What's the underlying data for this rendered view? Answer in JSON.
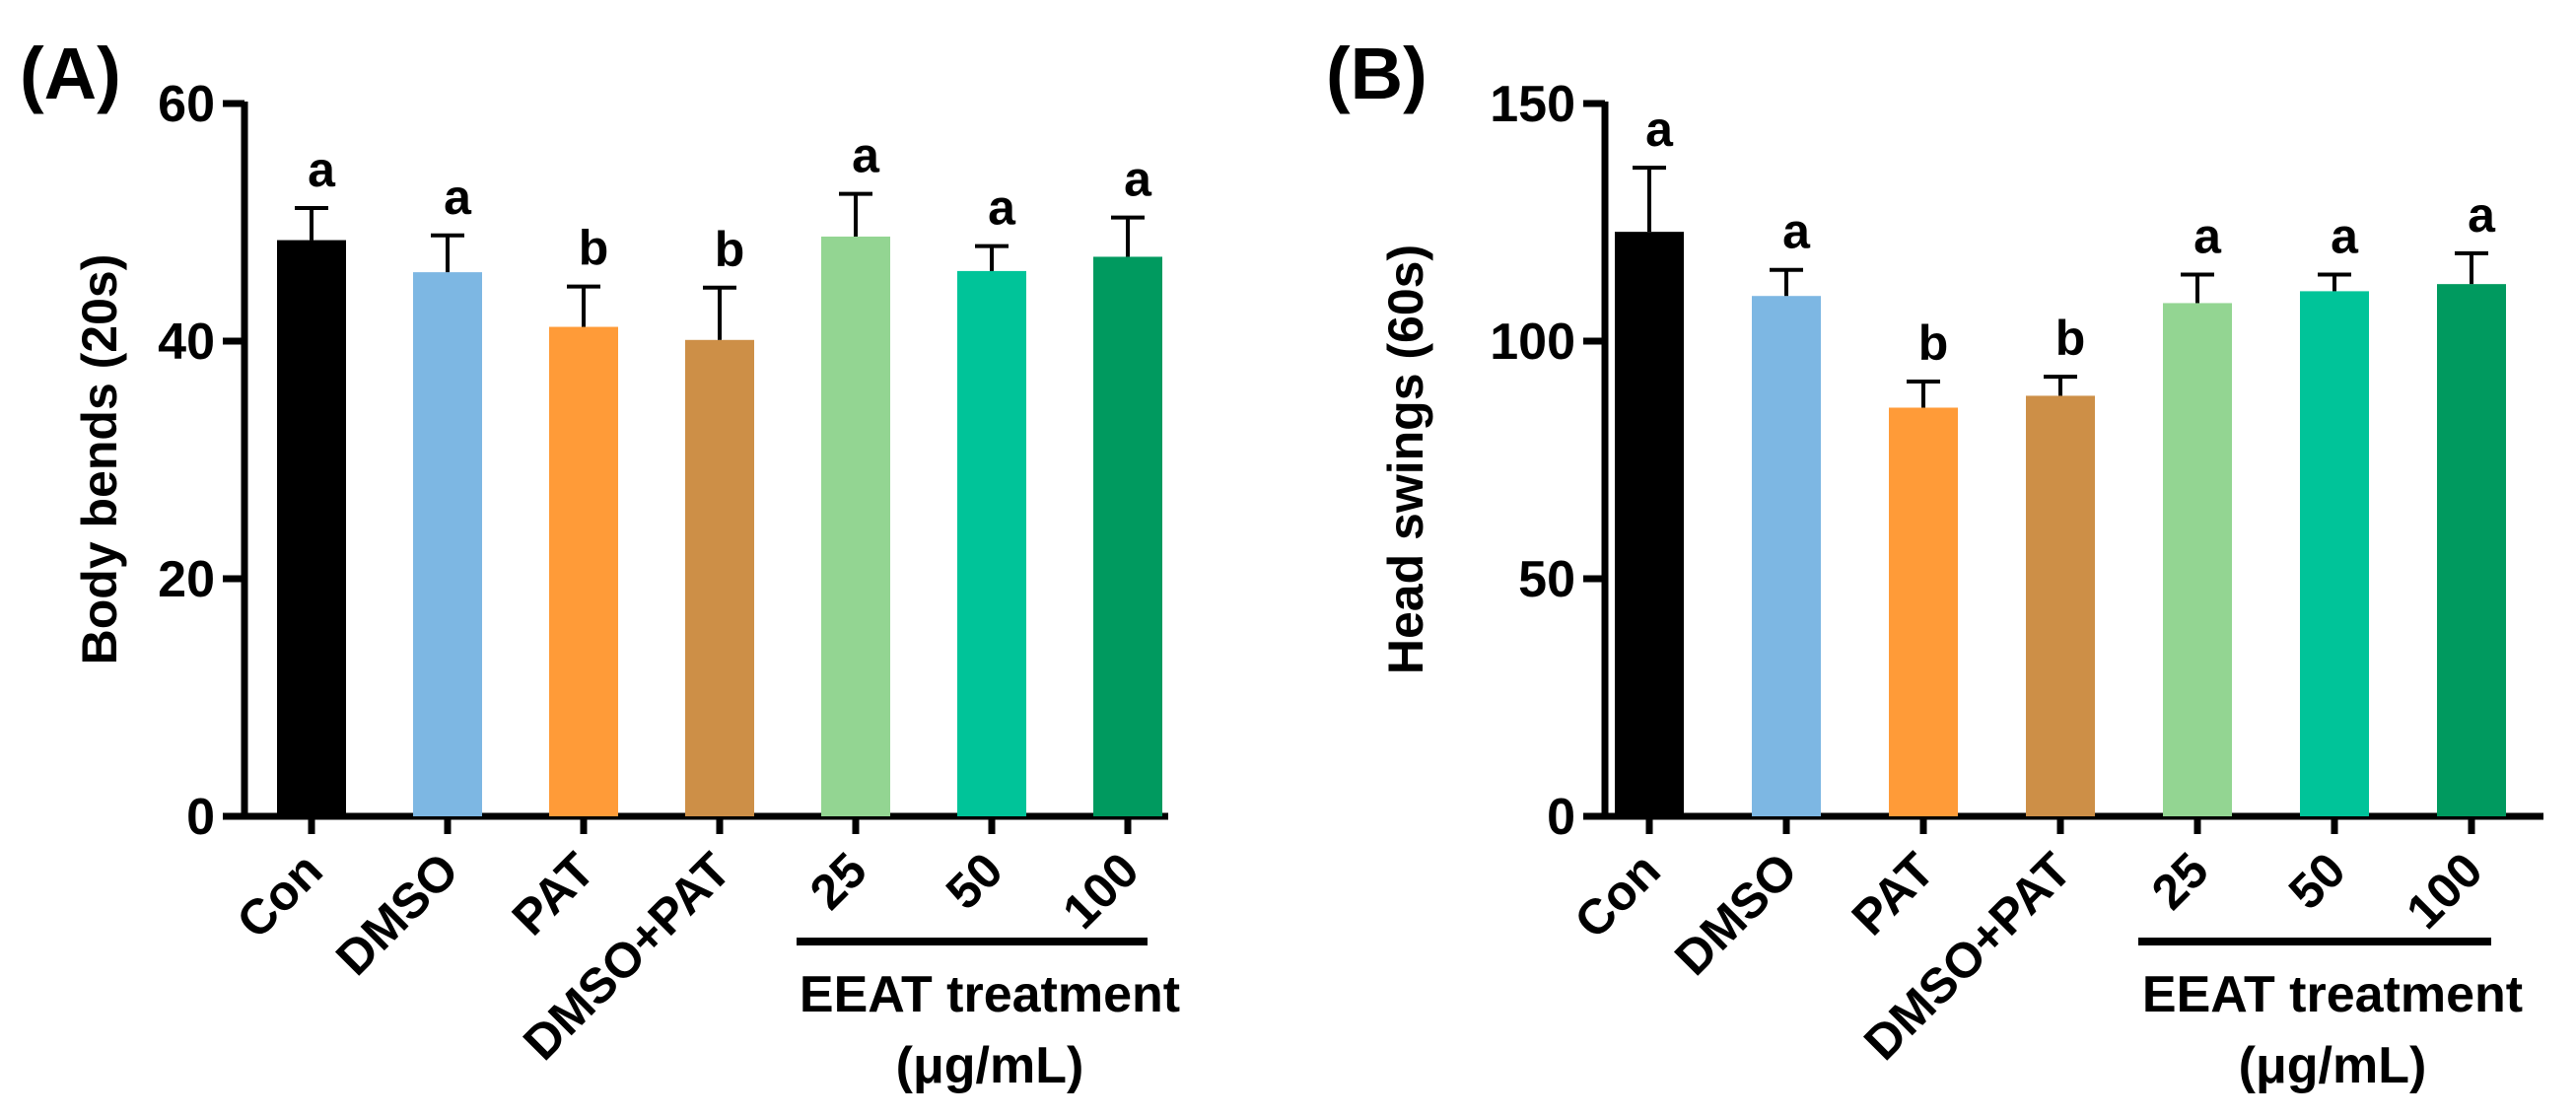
{
  "chart_data": [
    {
      "panel_label": "(A)",
      "type": "bar",
      "categories": [
        "Con",
        "DMSO",
        "PAT",
        "DMSO+PAT",
        "25",
        "50",
        "100"
      ],
      "values": [
        48.5,
        45.8,
        41.2,
        40.1,
        48.8,
        45.9,
        47.1
      ],
      "errors": [
        2.7,
        3.1,
        3.4,
        4.4,
        3.6,
        2.1,
        3.3
      ],
      "significance": [
        "a",
        "a",
        "b",
        "b",
        "a",
        "a",
        "a"
      ],
      "colors": [
        "#000000",
        "#7db7e3",
        "#ff9b38",
        "#cd8f47",
        "#93d592",
        "#00c499",
        "#009a5f"
      ],
      "ylabel": "Body bends (20s)",
      "ylim": [
        0,
        60
      ],
      "yticks": [
        0,
        20,
        40,
        60
      ],
      "group_label_line1": "EEAT treatment",
      "group_label_line2": "(μg/mL)",
      "group_categories": [
        "25",
        "50",
        "100"
      ],
      "grid": false,
      "legend": "none"
    },
    {
      "panel_label": "(B)",
      "type": "bar",
      "categories": [
        "Con",
        "DMSO",
        "PAT",
        "DMSO+PAT",
        "25",
        "50",
        "100"
      ],
      "values": [
        123,
        109.5,
        86,
        88.5,
        108,
        110.5,
        112
      ],
      "errors": [
        13.5,
        5.5,
        5.5,
        4,
        6,
        3.5,
        6.5
      ],
      "significance": [
        "a",
        "a",
        "b",
        "b",
        "a",
        "a",
        "a"
      ],
      "colors": [
        "#000000",
        "#7db7e3",
        "#ff9b38",
        "#cd8f47",
        "#93d592",
        "#00c499",
        "#009a5f"
      ],
      "ylabel": "Head swings (60s)",
      "ylim": [
        0,
        150
      ],
      "yticks": [
        0,
        50,
        100,
        150
      ],
      "group_label_line1": "EEAT treatment",
      "group_label_line2": "(μg/mL)",
      "group_categories": [
        "25",
        "50",
        "100"
      ],
      "grid": false,
      "legend": "none"
    }
  ]
}
